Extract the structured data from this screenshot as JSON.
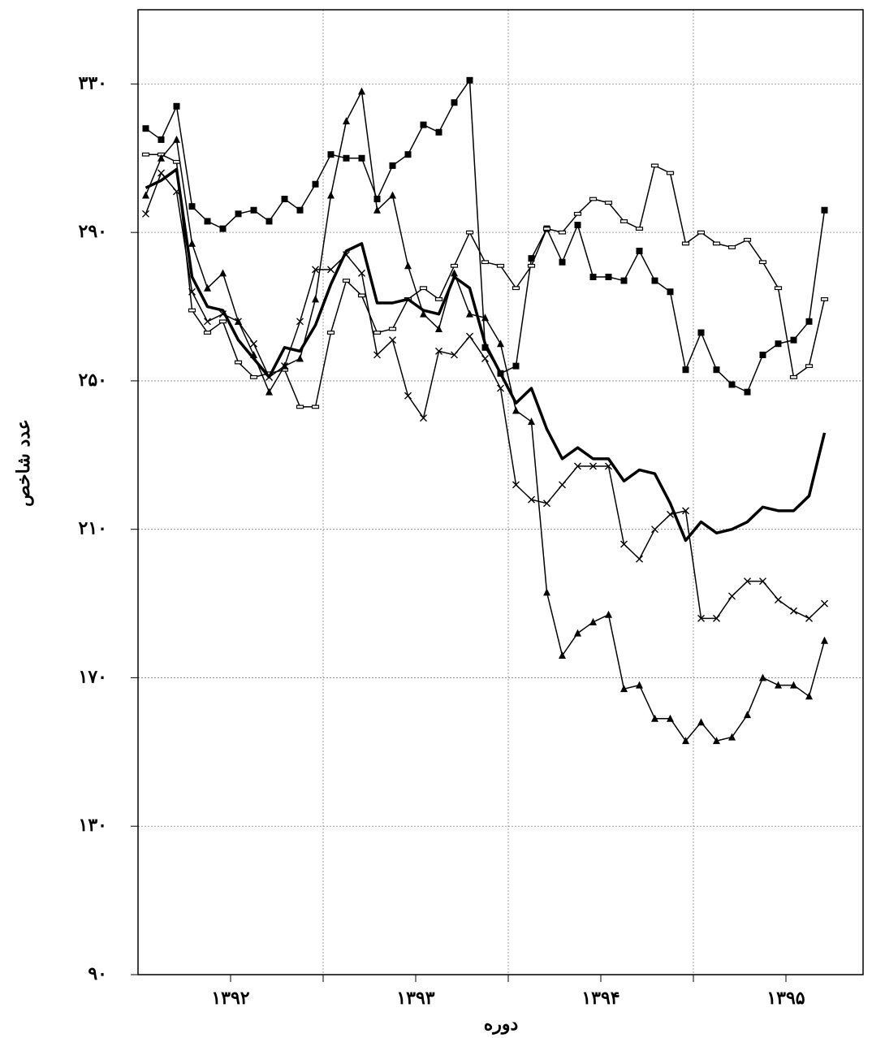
{
  "chart_data": {
    "type": "line",
    "y_label": "عدد شاخص",
    "x_label": "دوره",
    "x": [
      1,
      2,
      3,
      4,
      5,
      6,
      7,
      8,
      9,
      10,
      11,
      12,
      13,
      14,
      15,
      16,
      17,
      18,
      19,
      20,
      21,
      22,
      23,
      24,
      25,
      26,
      27,
      28,
      29,
      30,
      31,
      32,
      33,
      34,
      35,
      36,
      37,
      38,
      39,
      40,
      41,
      42,
      43,
      44,
      45
    ],
    "xlim": [
      0.5,
      47.5
    ],
    "xticks": [
      {
        "value": 6.5,
        "label": "۱۳۹۲"
      },
      {
        "value": 18.5,
        "label": "۱۳۹۳"
      },
      {
        "value": 30.5,
        "label": "۱۳۹۴"
      },
      {
        "value": 42.5,
        "label": "۱۳۹۵"
      }
    ],
    "xgrid": [
      12.5,
      24.5,
      36.5
    ],
    "ylim": [
      90,
      350
    ],
    "yticks": [
      {
        "value": 90,
        "label": "۹۰"
      },
      {
        "value": 130,
        "label": "۱۳۰"
      },
      {
        "value": 170,
        "label": "۱۷۰"
      },
      {
        "value": 210,
        "label": "۲۱۰"
      },
      {
        "value": 250,
        "label": "۲۵۰"
      },
      {
        "value": 290,
        "label": "۲۹۰"
      },
      {
        "value": 330,
        "label": "۳۳۰"
      }
    ],
    "grid": true,
    "series": [
      {
        "color": "#000000",
        "marker": "square",
        "linewidth": 1.5,
        "values": [
          318,
          315,
          324,
          297,
          293,
          291,
          295,
          296,
          293,
          299,
          296,
          303,
          311,
          310,
          310,
          299,
          308,
          311,
          319,
          317,
          325,
          331,
          259,
          252,
          254,
          283,
          291,
          282,
          292,
          278,
          278,
          277,
          285,
          277,
          274,
          253,
          263,
          253,
          249,
          247,
          257,
          260,
          261,
          266,
          296
        ]
      },
      {
        "color": "#000000",
        "marker": "rect",
        "linewidth": 1.5,
        "values": [
          311,
          311,
          309,
          269,
          263,
          266,
          255,
          251,
          252,
          253,
          243,
          243,
          263,
          277,
          273,
          263,
          264,
          272,
          275,
          272,
          281,
          290,
          282,
          281,
          275,
          281,
          291,
          290,
          295,
          299,
          298,
          293,
          291,
          308,
          306,
          287,
          290,
          287,
          286,
          288,
          282,
          275,
          251,
          254,
          272
        ]
      },
      {
        "color": "#000000",
        "marker": "triangle",
        "linewidth": 1.5,
        "values": [
          300,
          310,
          315,
          287,
          275,
          279,
          266,
          257,
          247,
          254,
          256,
          272,
          300,
          320,
          328,
          296,
          300,
          281,
          268,
          264,
          279,
          268,
          267,
          260,
          242,
          239,
          193,
          176,
          182,
          185,
          187,
          167,
          168,
          159,
          159,
          153,
          158,
          153,
          154,
          160,
          170,
          168,
          168,
          165,
          180
        ]
      },
      {
        "color": "#000000",
        "marker": "cross",
        "linewidth": 1.5,
        "values": [
          295,
          306,
          301,
          274,
          266,
          268,
          266,
          260,
          251,
          254,
          266,
          280,
          280,
          284,
          279,
          257,
          261,
          246,
          240,
          258,
          257,
          262,
          256,
          248,
          222,
          218,
          217,
          222,
          227,
          227,
          227,
          206,
          202,
          210,
          214,
          215,
          186,
          186,
          192,
          196,
          196,
          191,
          188,
          186,
          190
        ]
      },
      {
        "color": "#000000",
        "marker": "none",
        "linewidth": 3.5,
        "values": [
          302,
          304,
          307,
          278,
          270,
          269,
          261,
          256,
          251,
          259,
          258,
          265,
          276,
          285,
          287,
          271,
          271,
          272,
          269,
          268,
          278,
          275,
          260,
          252,
          244,
          248,
          237,
          229,
          232,
          229,
          229,
          223,
          226,
          225,
          217,
          207,
          212,
          209,
          210,
          212,
          216,
          215,
          215,
          219,
          236
        ]
      }
    ]
  }
}
